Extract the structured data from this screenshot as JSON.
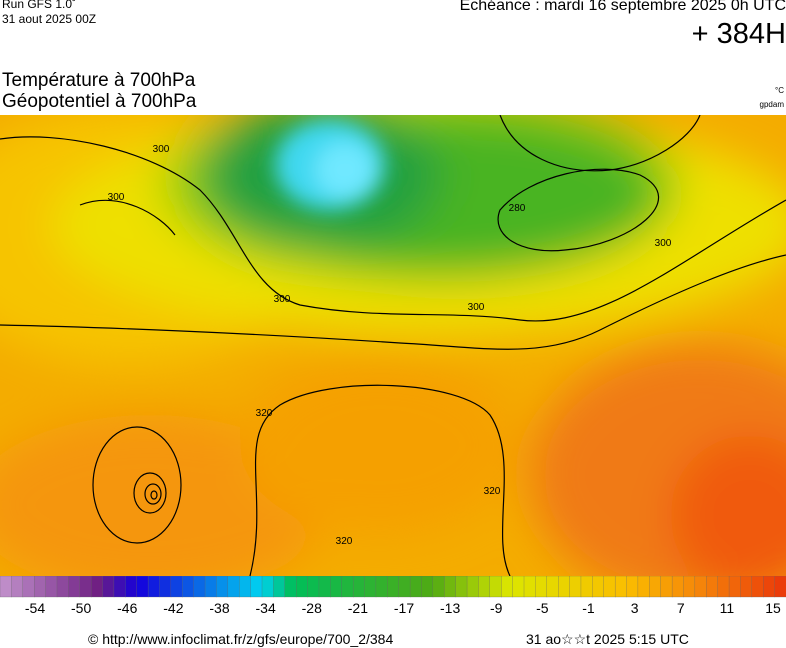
{
  "header": {
    "run": "Run GFS 1.0˚",
    "run_date": "31 aout 2025 00Z",
    "valid": "Echéance : mardi 16 septembre 2025 0h UTC",
    "lead": "+ 384H"
  },
  "titles": [
    "Température à 700hPa",
    "Géopotentiel à 700hPa"
  ],
  "units": [
    "°C",
    "gpdam"
  ],
  "contour_labels": [
    "300",
    "300",
    "300",
    "300",
    "280",
    "300",
    "320",
    "320",
    "320"
  ],
  "colorbar": {
    "ticks": [
      "-54",
      "-50",
      "-46",
      "-42",
      "-38",
      "-34",
      "-28",
      "-21",
      "-17",
      "-13",
      "-9",
      "-5",
      "-1",
      "3",
      "7",
      "11",
      "15"
    ]
  },
  "footer": {
    "source": "© http://www.infoclimat.fr/z/gfs/europe/700_2/384",
    "generated": "31 ao☆☆t 2025  5:15 UTC"
  }
}
